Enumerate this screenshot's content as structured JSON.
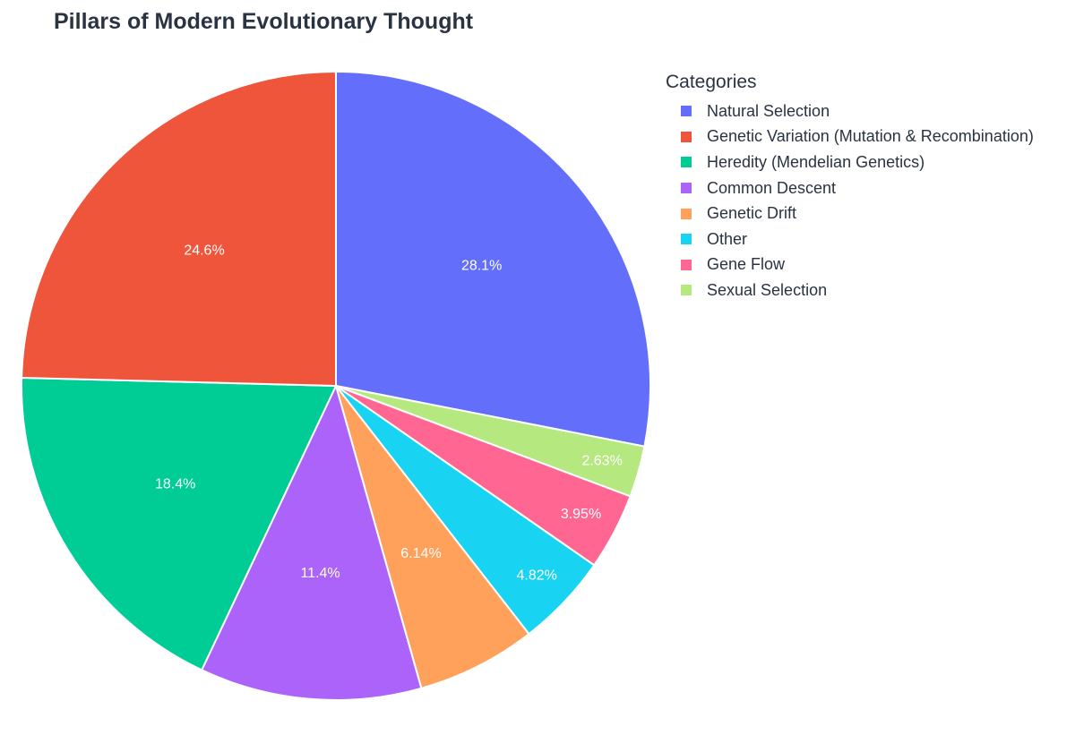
{
  "chart_data": {
    "type": "pie",
    "title": "Pillars of Modern Evolutionary Thought",
    "legend_title": "Categories",
    "legend_position": "right",
    "direction": "clockwise",
    "slices": [
      {
        "name": "Natural Selection",
        "value": 28.1,
        "label": "28.1%",
        "color": "#636efa"
      },
      {
        "name": "Sexual Selection",
        "value": 2.63,
        "label": "2.63%",
        "color": "#b6e880"
      },
      {
        "name": "Gene Flow",
        "value": 3.95,
        "label": "3.95%",
        "color": "#ff6692"
      },
      {
        "name": "Other",
        "value": 4.82,
        "label": "4.82%",
        "color": "#19d3f3"
      },
      {
        "name": "Genetic Drift",
        "value": 6.14,
        "label": "6.14%",
        "color": "#ffa15a"
      },
      {
        "name": "Common Descent",
        "value": 11.4,
        "label": "11.4%",
        "color": "#ab63fa"
      },
      {
        "name": "Heredity (Mendelian Genetics)",
        "value": 18.4,
        "label": "18.4%",
        "color": "#00cc96"
      },
      {
        "name": "Genetic Variation (Mutation & Recombination)",
        "value": 24.6,
        "label": "24.6%",
        "color": "#ef553b"
      }
    ],
    "legend_order": [
      "Natural Selection",
      "Genetic Variation (Mutation & Recombination)",
      "Heredity (Mendelian Genetics)",
      "Common Descent",
      "Genetic Drift",
      "Other",
      "Gene Flow",
      "Sexual Selection"
    ]
  }
}
